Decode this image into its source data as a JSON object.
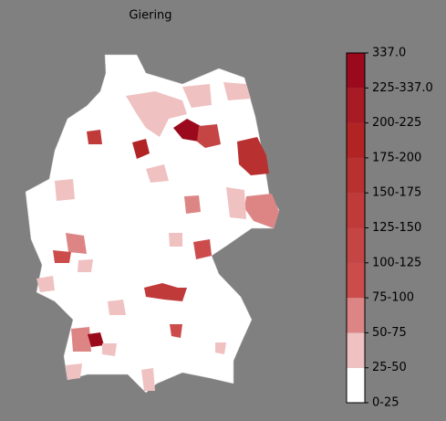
{
  "title": "Giering",
  "colorbar": {
    "labels": [
      "0-25",
      "25-50",
      "50-75",
      "75-100",
      "100-125",
      "125-150",
      "150-175",
      "175-200",
      "200-225",
      "225-337.0",
      "337.0"
    ],
    "colors": [
      "#ffffff",
      "#efc1c1",
      "#dd8585",
      "#cc4c4c",
      "#c54444",
      "#c03a3a",
      "#b93030",
      "#b22424",
      "#a81a24",
      "#9a0a1c"
    ]
  }
}
